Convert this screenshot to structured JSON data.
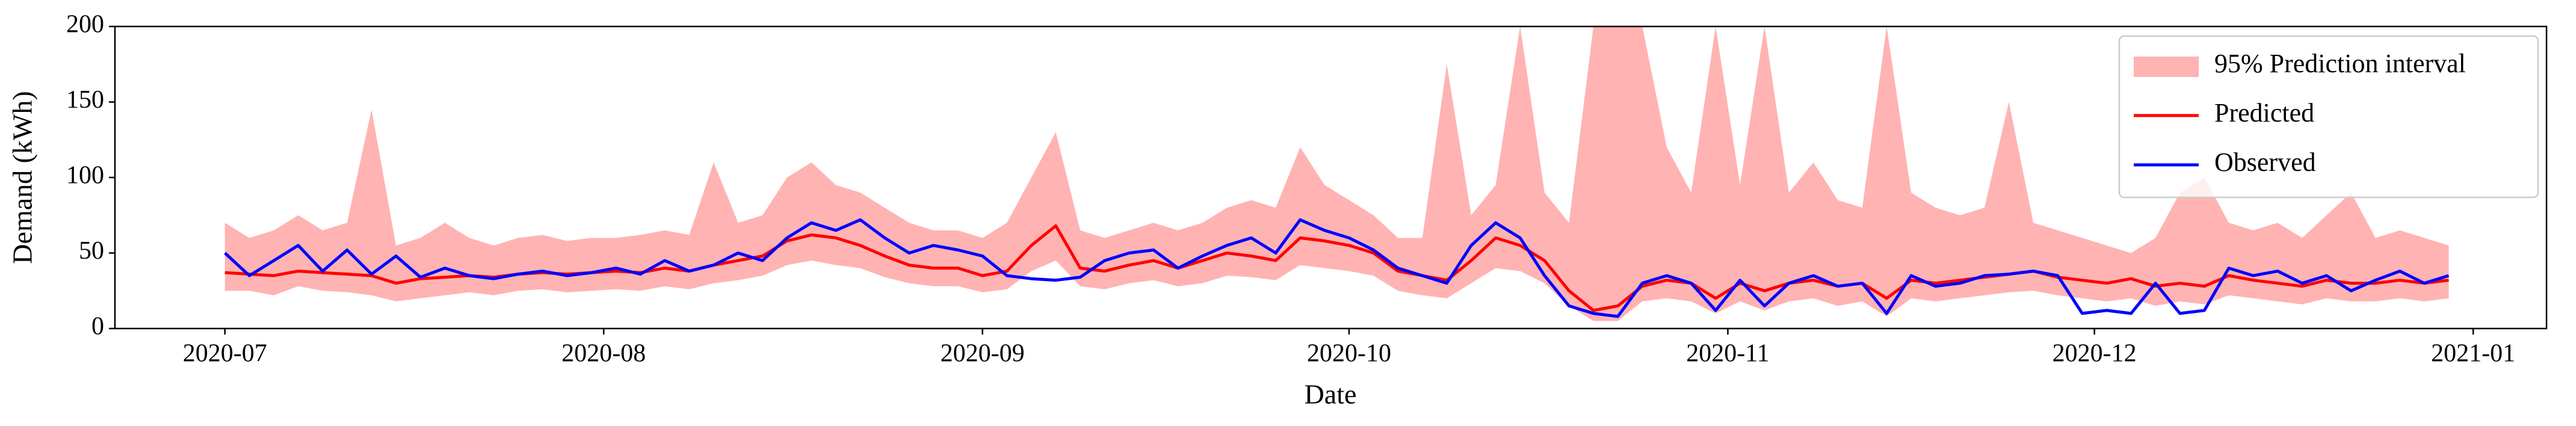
{
  "chart_data": {
    "type": "line",
    "xlabel": "Date",
    "ylabel": "Demand (kWh)",
    "x": [
      0,
      2,
      4,
      6,
      8,
      10,
      12,
      14,
      16,
      18,
      20,
      22,
      24,
      26,
      28,
      30,
      32,
      34,
      36,
      38,
      40,
      42,
      44,
      46,
      48,
      50,
      52,
      54,
      56,
      58,
      60,
      62,
      64,
      66,
      68,
      70,
      72,
      74,
      76,
      78,
      80,
      82,
      84,
      86,
      88,
      90,
      92,
      94,
      96,
      98,
      100,
      102,
      104,
      106,
      108,
      110,
      112,
      114,
      116,
      118,
      120,
      122,
      124,
      126,
      128,
      130,
      132,
      134,
      136,
      138,
      140,
      142,
      144,
      146,
      148,
      150,
      152,
      154,
      156,
      158,
      160,
      162,
      164,
      166,
      168,
      170,
      172,
      174,
      176,
      178,
      180,
      182
    ],
    "xlim": [
      -9,
      190
    ],
    "xticks": [
      {
        "value": 0,
        "label": "2020-07"
      },
      {
        "value": 31,
        "label": "2020-08"
      },
      {
        "value": 62,
        "label": "2020-09"
      },
      {
        "value": 92,
        "label": "2020-10"
      },
      {
        "value": 123,
        "label": "2020-11"
      },
      {
        "value": 153,
        "label": "2020-12"
      },
      {
        "value": 184,
        "label": "2021-01"
      }
    ],
    "ylim": [
      0,
      200
    ],
    "yticks": [
      0,
      50,
      100,
      150,
      200
    ],
    "grid": false,
    "legend": "upper right",
    "interval": {
      "name": "95% Prediction interval",
      "color": "#ffb3b3",
      "upper": [
        70,
        60,
        65,
        75,
        65,
        70,
        145,
        55,
        60,
        70,
        60,
        55,
        60,
        62,
        58,
        60,
        60,
        62,
        65,
        62,
        110,
        70,
        75,
        100,
        110,
        95,
        90,
        80,
        70,
        65,
        65,
        60,
        70,
        100,
        130,
        65,
        60,
        65,
        70,
        65,
        70,
        80,
        85,
        80,
        120,
        95,
        85,
        75,
        60,
        60,
        175,
        75,
        95,
        200,
        90,
        70,
        200,
        200,
        200,
        120,
        90,
        200,
        95,
        200,
        90,
        110,
        85,
        80,
        200,
        90,
        80,
        75,
        80,
        150,
        70,
        65,
        60,
        55,
        50,
        60,
        90,
        100,
        70,
        65,
        70,
        60,
        75,
        90,
        60,
        65,
        60,
        55
      ],
      "lower": [
        25,
        25,
        22,
        28,
        25,
        24,
        22,
        18,
        20,
        22,
        24,
        22,
        25,
        26,
        24,
        25,
        26,
        25,
        28,
        26,
        30,
        32,
        35,
        42,
        45,
        42,
        40,
        34,
        30,
        28,
        28,
        24,
        26,
        38,
        45,
        28,
        26,
        30,
        32,
        28,
        30,
        35,
        34,
        32,
        42,
        40,
        38,
        35,
        25,
        22,
        20,
        30,
        40,
        38,
        30,
        15,
        5,
        5,
        18,
        20,
        18,
        10,
        18,
        12,
        18,
        20,
        15,
        18,
        8,
        20,
        18,
        20,
        22,
        24,
        25,
        22,
        20,
        18,
        20,
        15,
        18,
        16,
        22,
        20,
        18,
        16,
        20,
        18,
        18,
        20,
        18,
        20
      ]
    },
    "series": [
      {
        "name": "Predicted",
        "color": "#ff0000",
        "values": [
          37,
          36,
          35,
          38,
          37,
          36,
          35,
          30,
          33,
          34,
          35,
          34,
          36,
          37,
          36,
          37,
          38,
          37,
          40,
          38,
          42,
          45,
          48,
          58,
          62,
          60,
          55,
          48,
          42,
          40,
          40,
          35,
          38,
          55,
          68,
          40,
          38,
          42,
          45,
          40,
          45,
          50,
          48,
          45,
          60,
          58,
          55,
          50,
          38,
          35,
          32,
          45,
          60,
          55,
          45,
          25,
          12,
          15,
          28,
          32,
          30,
          20,
          30,
          25,
          30,
          32,
          28,
          30,
          20,
          32,
          30,
          32,
          34,
          36,
          38,
          34,
          32,
          30,
          33,
          28,
          30,
          28,
          35,
          32,
          30,
          28,
          32,
          30,
          30,
          32,
          30,
          32
        ]
      },
      {
        "name": "Observed",
        "color": "#0000ff",
        "values": [
          50,
          35,
          45,
          55,
          38,
          52,
          36,
          48,
          34,
          40,
          35,
          33,
          36,
          38,
          35,
          37,
          40,
          36,
          45,
          38,
          42,
          50,
          45,
          60,
          70,
          65,
          72,
          60,
          50,
          55,
          52,
          48,
          35,
          33,
          32,
          34,
          45,
          50,
          52,
          40,
          48,
          55,
          60,
          50,
          72,
          65,
          60,
          52,
          40,
          35,
          30,
          55,
          70,
          60,
          35,
          15,
          10,
          8,
          30,
          35,
          30,
          12,
          32,
          15,
          30,
          35,
          28,
          30,
          10,
          35,
          28,
          30,
          35,
          36,
          38,
          35,
          10,
          12,
          10,
          30,
          10,
          12,
          40,
          35,
          38,
          30,
          35,
          25,
          32,
          38,
          30,
          35
        ]
      }
    ]
  }
}
